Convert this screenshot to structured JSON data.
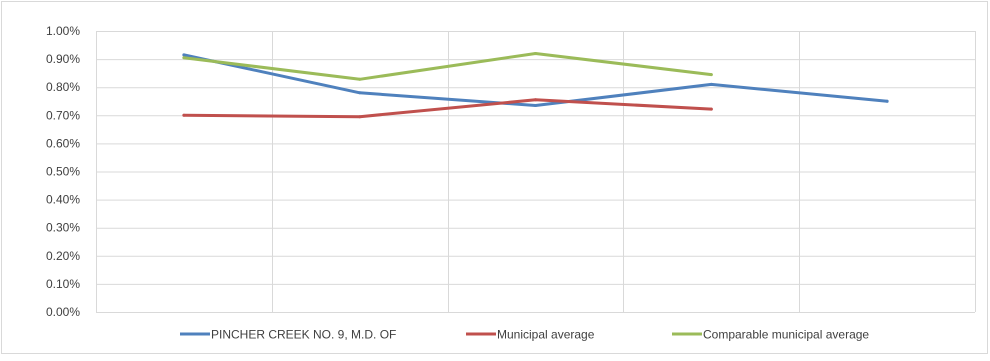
{
  "chart_data": {
    "type": "line",
    "title": "",
    "xlabel": "",
    "ylabel": "",
    "categories": [
      "",
      "",
      "",
      "",
      ""
    ],
    "ylim": [
      0,
      0.01
    ],
    "yticks": [
      {
        "value": 0.0,
        "label": "0.00%"
      },
      {
        "value": 0.001,
        "label": "0.10%"
      },
      {
        "value": 0.002,
        "label": "0.20%"
      },
      {
        "value": 0.003,
        "label": "0.30%"
      },
      {
        "value": 0.004,
        "label": "0.40%"
      },
      {
        "value": 0.005,
        "label": "0.50%"
      },
      {
        "value": 0.006,
        "label": "0.60%"
      },
      {
        "value": 0.007,
        "label": "0.70%"
      },
      {
        "value": 0.008,
        "label": "0.80%"
      },
      {
        "value": 0.009,
        "label": "0.90%"
      },
      {
        "value": 0.01,
        "label": "1.00%"
      }
    ],
    "grid": true,
    "legend_position": "bottom",
    "series": [
      {
        "name": "PINCHER CREEK NO. 9, M.D. OF",
        "color": "#4F81BD",
        "values": [
          0.00915,
          0.0078,
          0.00735,
          0.0081,
          0.0075
        ]
      },
      {
        "name": "Municipal average",
        "color": "#C0504D",
        "values": [
          0.007,
          0.00695,
          0.00755,
          0.00722,
          null
        ]
      },
      {
        "name": "Comparable municipal average",
        "color": "#9BBB59",
        "values": [
          0.00905,
          0.00828,
          0.0092,
          0.00845,
          null
        ]
      }
    ]
  }
}
